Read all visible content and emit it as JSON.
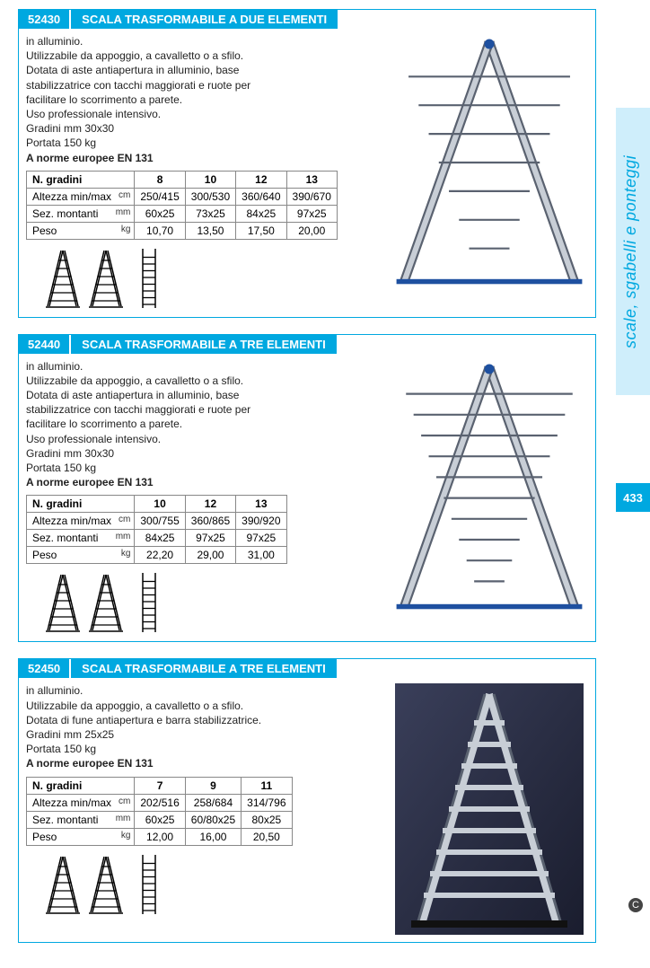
{
  "sidebar": {
    "category": "scale, sgabelli e ponteggi",
    "page_number": "433"
  },
  "products": [
    {
      "code": "52430",
      "title": "SCALA TRASFORMABILE A DUE ELEMENTI",
      "description_lines": [
        "in alluminio.",
        "Utilizzabile da appoggio, a cavalletto o a sfilo.",
        "Dotata di aste antiapertura in alluminio, base",
        "stabilizzatrice con tacchi maggiorati e ruote per",
        "facilitare lo scorrimento a parete.",
        "Uso professionale intensivo.",
        "Gradini mm 30x30",
        "Portata 150 kg"
      ],
      "norm": "A norme europee EN 131",
      "table": {
        "header_label": "N. gradini",
        "columns": [
          "8",
          "10",
          "12",
          "13"
        ],
        "rows": [
          {
            "label": "Altezza min/max",
            "unit": "cm",
            "values": [
              "250/415",
              "300/530",
              "360/640",
              "390/670"
            ]
          },
          {
            "label": "Sez. montanti",
            "unit": "mm",
            "values": [
              "60x25",
              "73x25",
              "84x25",
              "97x25"
            ]
          },
          {
            "label": "Peso",
            "unit": "kg",
            "values": [
              "10,70",
              "13,50",
              "17,50",
              "20,00"
            ]
          }
        ]
      }
    },
    {
      "code": "52440",
      "title": "SCALA TRASFORMABILE A TRE ELEMENTI",
      "description_lines": [
        "in alluminio.",
        "Utilizzabile da appoggio, a cavalletto o a sfilo.",
        "Dotata di aste antiapertura in alluminio, base",
        "stabilizzatrice con tacchi maggiorati e ruote  per",
        "facilitare lo scorrimento a parete.",
        "Uso professionale intensivo.",
        "Gradini mm 30x30",
        "Portata 150 kg"
      ],
      "norm": "A norme europee EN 131",
      "table": {
        "header_label": "N. gradini",
        "columns": [
          "10",
          "12",
          "13"
        ],
        "rows": [
          {
            "label": "Altezza min/max",
            "unit": "cm",
            "values": [
              "300/755",
              "360/865",
              "390/920"
            ]
          },
          {
            "label": "Sez. montanti",
            "unit": "mm",
            "values": [
              "84x25",
              "97x25",
              "97x25"
            ]
          },
          {
            "label": "Peso",
            "unit": "kg",
            "values": [
              "22,20",
              "29,00",
              "31,00"
            ]
          }
        ]
      }
    },
    {
      "code": "52450",
      "title": "SCALA TRASFORMABILE A TRE ELEMENTI",
      "description_lines": [
        "in alluminio.",
        "Utilizzabile da appoggio, a cavalletto o a sfilo.",
        "Dotata di fune antiapertura e barra stabilizzatrice.",
        "Gradini mm 25x25",
        "Portata 150 kg"
      ],
      "norm": "A norme europee EN 131",
      "table": {
        "header_label": "N. gradini",
        "columns": [
          "7",
          "9",
          "11"
        ],
        "rows": [
          {
            "label": "Altezza min/max",
            "unit": "cm",
            "values": [
              "202/516",
              "258/684",
              "314/796"
            ]
          },
          {
            "label": "Sez. montanti",
            "unit": "mm",
            "values": [
              "60x25",
              "60/80x25",
              "80x25"
            ]
          },
          {
            "label": "Peso",
            "unit": "kg",
            "values": [
              "12,00",
              "16,00",
              "20,50"
            ]
          }
        ]
      }
    }
  ],
  "colors": {
    "brand": "#00a8e0",
    "sidebar_bg": "#cfeefb",
    "border": "#888888",
    "text": "#222222",
    "ladder_fill": "#c8ced6",
    "ladder_stroke": "#5a6270",
    "accent_blue": "#1e50a0"
  }
}
